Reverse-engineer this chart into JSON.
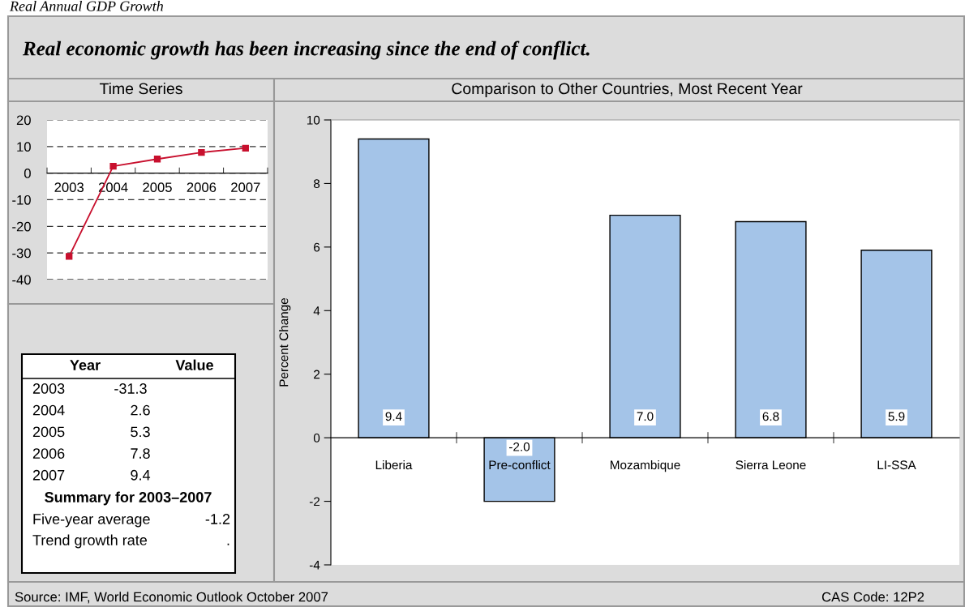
{
  "chart_data": [
    {
      "type": "line",
      "title": "Time Series",
      "annotations": [
        "Real Annual GDP Growth",
        "Real economic growth has been increasing since the end of conflict."
      ],
      "categories": [
        "2003",
        "2004",
        "2005",
        "2006",
        "2007"
      ],
      "series": [
        {
          "color": "#c8102e",
          "values": [
            -31.3,
            2.6,
            5.3,
            7.8,
            9.4
          ]
        }
      ],
      "ylim": [
        -40,
        20
      ],
      "yticks": [
        -40,
        -30,
        -20,
        -10,
        0,
        10,
        20
      ],
      "grid": "y",
      "marker": "square",
      "line_style": "solid"
    },
    {
      "type": "other",
      "annotations": [
        "Year",
        "Value",
        "2003",
        "-31.3",
        "2004",
        "2.6",
        "2005",
        "5.3",
        "2006",
        "7.8",
        "2007",
        "9.4",
        "Summary for 2003–2007",
        "Five-year average",
        "-1.2",
        "Trend growth rate",
        "."
      ]
    },
    {
      "type": "bar",
      "title": "Comparison to Other Countries, Most Recent Year",
      "ylabel": "Percent Change",
      "annotations": [
        "Source: IMF, World Economic Outlook October 2007",
        "CAS Code: 12P2"
      ],
      "categories": [
        "Liberia",
        "Pre-conflict",
        "Mozambique",
        "Sierra Leone",
        "LI-SSA"
      ],
      "values": [
        9.4,
        -2.0,
        7.0,
        6.8,
        5.9
      ],
      "value_labels": [
        "9.4",
        "-2.0",
        "7.0",
        "6.8",
        "5.9"
      ],
      "color": "#a4c4e8",
      "ylim": [
        -4,
        10
      ],
      "yticks": [
        -4,
        -2,
        0,
        2,
        4,
        6,
        8,
        10
      ]
    }
  ]
}
